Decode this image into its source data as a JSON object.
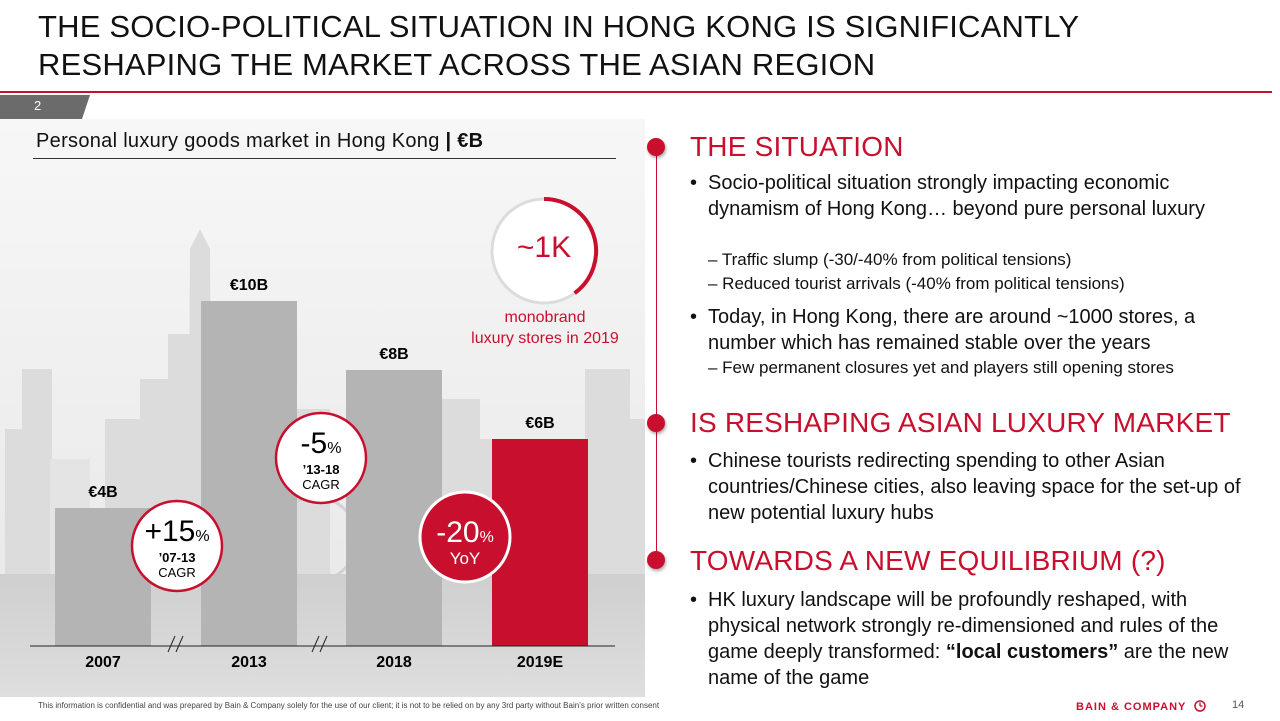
{
  "title": "THE SOCIO-POLITICAL SITUATION IN HONG KONG IS SIGNIFICANTLY RESHAPING THE MARKET ACROSS THE ASIAN REGION",
  "section_number": "2",
  "accent_color": "#c8102e",
  "bar_color": "#b4b4b4",
  "chart_title": "Personal luxury goods market in Hong Kong",
  "chart_title_unit": "| €B",
  "chart_data": {
    "type": "bar",
    "categories": [
      "2007",
      "2013",
      "2018",
      "2019E"
    ],
    "values": [
      4,
      10,
      8,
      6
    ],
    "labels": [
      "€4B",
      "€10B",
      "€8B",
      "€6B"
    ],
    "highlight": "2019E",
    "title": "Personal luxury goods market in Hong Kong | €B",
    "axis_breaks": [
      "2007-2013",
      "2013-2018"
    ],
    "annotations": [
      {
        "value": "+15",
        "unit": "%",
        "line1": "’07-13",
        "line2": "CAGR"
      },
      {
        "value": "-5",
        "unit": "%",
        "line1": "’13-18",
        "line2": "CAGR"
      },
      {
        "value": "-20",
        "unit": "%",
        "line1": "YoY",
        "line2": ""
      }
    ]
  },
  "stores": {
    "value": "~1K",
    "caption_line1": "monobrand",
    "caption_line2": "luxury stores in 2019"
  },
  "sections": [
    {
      "heading": "THE SITUATION",
      "bullets": [
        {
          "text": "Socio-political situation strongly impacting economic dynamism of Hong Kong… beyond pure personal luxury",
          "subs": [
            "– Traffic slump (-30/-40% from political tensions)",
            "– Reduced tourist arrivals (-40% from political tensions)"
          ]
        },
        {
          "text": "Today, in Hong Kong, there are around ~1000 stores, a number which has remained stable over the years",
          "subs": [
            "– Few permanent closures yet and players still opening stores"
          ]
        }
      ]
    },
    {
      "heading": "IS RESHAPING ASIAN LUXURY MARKET",
      "bullets": [
        {
          "text": "Chinese tourists redirecting spending to other Asian countries/Chinese cities, also leaving space for the set-up of new potential luxury hubs",
          "subs": []
        }
      ]
    },
    {
      "heading": "TOWARDS A NEW EQUILIBRIUM (?)",
      "bullets": [
        {
          "text_before": "HK luxury landscape will be profoundly reshaped, with physical network strongly re-dimensioned and rules of the game deeply transformed: ",
          "text_bold": "“local customers”",
          "text_after": " are the new name of the game",
          "subs": []
        }
      ]
    }
  ],
  "footer_note": "This information is confidential and was prepared by Bain & Company solely for the use of our client; it is not to be relied on by any 3rd party without Bain’s prior written consent",
  "logo_text": "BAIN & COMPANY",
  "page_number": "14"
}
